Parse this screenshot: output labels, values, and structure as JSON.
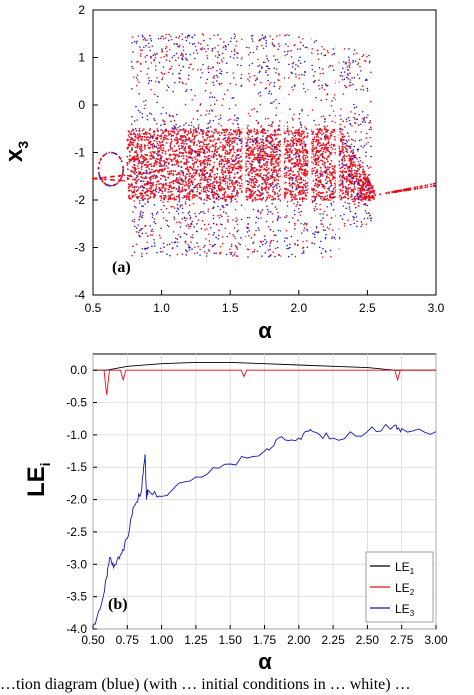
{
  "chart_data": [
    {
      "panel_label": "(a)",
      "type": "scatter",
      "xlabel": "α",
      "ylabel": "x",
      "ylabel_sub": "3",
      "xlim": [
        0.5,
        3.0
      ],
      "ylim": [
        -4,
        2
      ],
      "xticks": [
        "0.5",
        "1.0",
        "1.5",
        "2.0",
        "2.5",
        "3.0"
      ],
      "yticks": [
        "2",
        "1",
        "0",
        "-1",
        "-2",
        "-3",
        "-4"
      ],
      "colors": {
        "series_a": "#e8101c",
        "series_b": "#2020c8"
      },
      "description_points": {
        "periodic_branch": [
          [
            0.5,
            -1.55
          ],
          [
            0.6,
            -1.5
          ],
          [
            0.7,
            -1.4
          ],
          [
            0.75,
            -0.5
          ],
          [
            2.55,
            -1.9
          ],
          [
            2.7,
            -1.75
          ],
          [
            3.0,
            -1.65
          ]
        ],
        "chaotic_band": {
          "x_range": [
            0.75,
            2.55
          ],
          "y_range": [
            -3.2,
            1.5
          ]
        }
      }
    },
    {
      "panel_label": "(b)",
      "type": "line",
      "xlabel": "α",
      "ylabel": "LE",
      "ylabel_sub": "i",
      "xlim": [
        0.5,
        3.0
      ],
      "ylim": [
        -4.0,
        0.25
      ],
      "xticks": [
        "0.50",
        "0.75",
        "1.00",
        "1.25",
        "1.50",
        "1.75",
        "2.00",
        "2.25",
        "2.50",
        "2.75",
        "3.00"
      ],
      "yticks": [
        "0.0",
        "-0.5",
        "-1.0",
        "-1.5",
        "-2.0",
        "-2.5",
        "-3.0",
        "-3.5",
        "-4.0"
      ],
      "series": [
        {
          "name": "LE",
          "sub": "1",
          "color": "#000000",
          "x": [
            0.5,
            0.6,
            0.75,
            1.0,
            1.25,
            1.5,
            1.75,
            2.0,
            2.25,
            2.5,
            2.7,
            2.8,
            3.0
          ],
          "y": [
            0.0,
            0.0,
            0.06,
            0.1,
            0.12,
            0.12,
            0.1,
            0.08,
            0.06,
            0.04,
            0.0,
            0.0,
            0.0
          ]
        },
        {
          "name": "LE",
          "sub": "2",
          "color": "#e8101c",
          "x": [
            0.5,
            0.58,
            0.6,
            0.62,
            0.7,
            0.72,
            0.74,
            0.9,
            1.58,
            1.6,
            1.62,
            2.7,
            2.72,
            2.74,
            3.0
          ],
          "y": [
            0.0,
            0.0,
            -0.38,
            0.0,
            0.0,
            -0.15,
            0.0,
            0.0,
            0.0,
            -0.1,
            0.0,
            0.0,
            -0.15,
            0.0,
            0.0
          ]
        },
        {
          "name": "LE",
          "sub": "3",
          "color": "#1818b8",
          "x": [
            0.5,
            0.55,
            0.6,
            0.62,
            0.65,
            0.7,
            0.75,
            0.8,
            0.85,
            0.88,
            0.89,
            0.9,
            1.0,
            1.25,
            1.5,
            1.75,
            1.85,
            2.0,
            2.1,
            2.25,
            2.5,
            2.7,
            2.75,
            3.0
          ],
          "y": [
            -3.95,
            -3.7,
            -3.2,
            -2.9,
            -3.05,
            -2.85,
            -2.6,
            -2.1,
            -1.9,
            -1.3,
            -2.0,
            -1.85,
            -1.95,
            -1.65,
            -1.45,
            -1.25,
            -1.05,
            -1.05,
            -0.95,
            -1.05,
            -0.95,
            -0.85,
            -0.9,
            -0.95
          ]
        }
      ],
      "legend_position": "bottom-right"
    }
  ],
  "caption": "…tion diagram (blue) (with … initial conditions in … white) …"
}
